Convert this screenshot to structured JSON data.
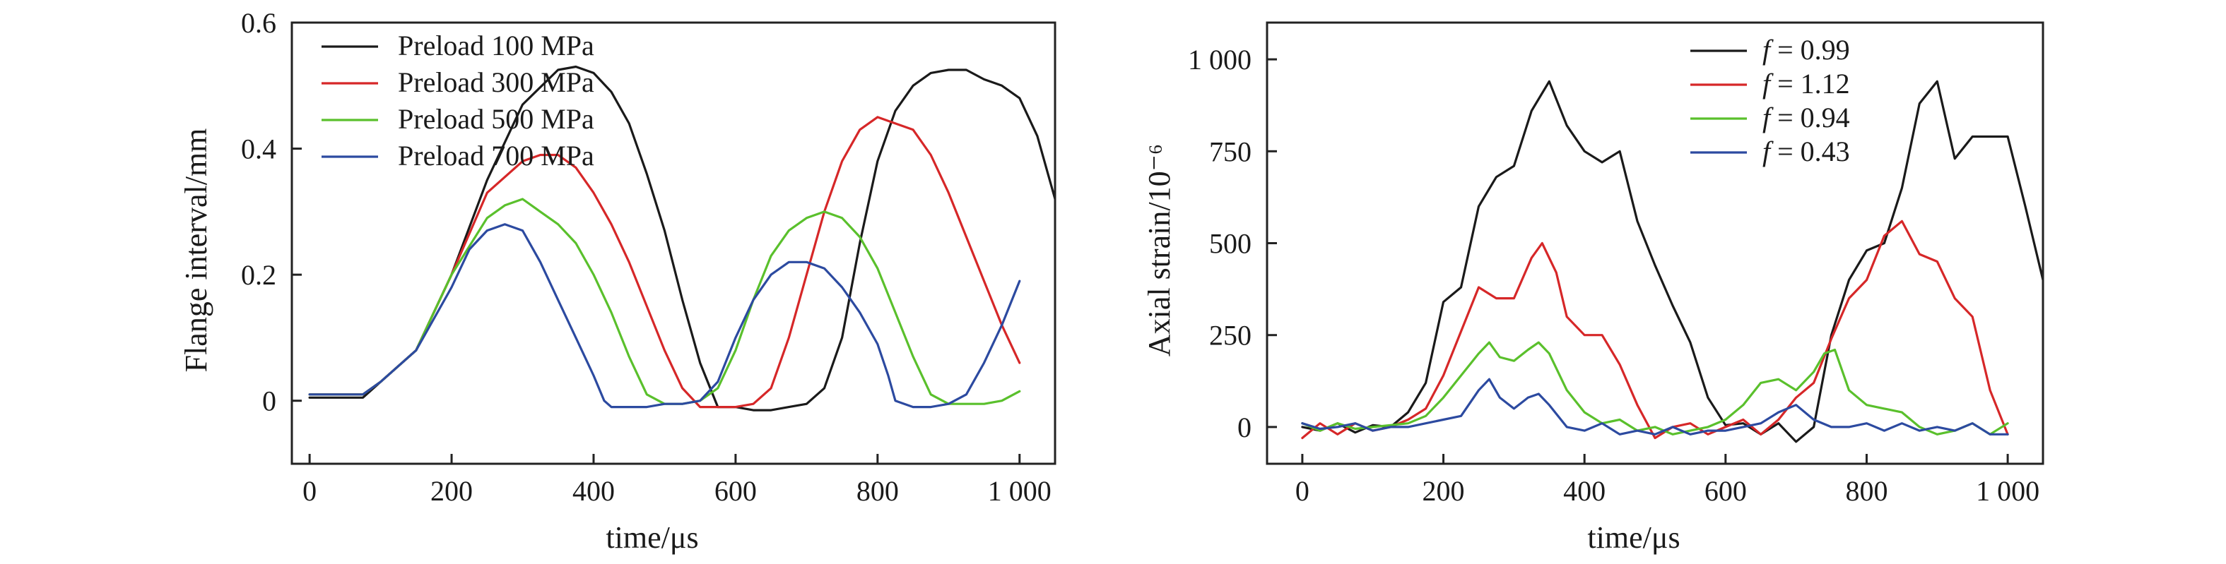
{
  "chart_data": [
    {
      "type": "line",
      "xlabel": "time/μs",
      "ylabel": "Flange interval/mm",
      "xlim": [
        -25,
        1050
      ],
      "ylim": [
        -0.1,
        0.6
      ],
      "xticks": [
        0,
        200,
        400,
        600,
        800,
        1000
      ],
      "xtick_labels": [
        "0",
        "200",
        "400",
        "600",
        "800",
        "1 000"
      ],
      "yticks": [
        0,
        0.2,
        0.4,
        0.6
      ],
      "ytick_labels": [
        "0",
        "0.2",
        "0.4",
        "0.6"
      ],
      "legend_position": "top-left",
      "series": [
        {
          "name": "Preload 100 MPa",
          "color": "#1a1a1a",
          "x": [
            0,
            75,
            100,
            150,
            200,
            250,
            300,
            350,
            375,
            400,
            425,
            450,
            475,
            500,
            525,
            550,
            575,
            600,
            625,
            650,
            675,
            700,
            725,
            750,
            775,
            800,
            825,
            850,
            875,
            900,
            925,
            950,
            975,
            1000,
            1025,
            1050
          ],
          "y": [
            0.005,
            0.005,
            0.03,
            0.08,
            0.2,
            0.35,
            0.47,
            0.525,
            0.53,
            0.52,
            0.49,
            0.44,
            0.36,
            0.27,
            0.16,
            0.06,
            -0.01,
            -0.01,
            -0.015,
            -0.015,
            -0.01,
            -0.005,
            0.02,
            0.1,
            0.25,
            0.38,
            0.46,
            0.5,
            0.52,
            0.525,
            0.525,
            0.51,
            0.5,
            0.48,
            0.42,
            0.32
          ]
        },
        {
          "name": "Preload 300 MPa",
          "color": "#d62728",
          "x": [
            0,
            75,
            100,
            150,
            200,
            250,
            300,
            325,
            350,
            375,
            400,
            425,
            450,
            475,
            500,
            525,
            550,
            575,
            600,
            625,
            650,
            675,
            700,
            725,
            750,
            775,
            800,
            825,
            850,
            875,
            900,
            925,
            950,
            975,
            1000
          ],
          "y": [
            0.01,
            0.01,
            0.03,
            0.08,
            0.2,
            0.33,
            0.38,
            0.39,
            0.39,
            0.37,
            0.33,
            0.28,
            0.22,
            0.15,
            0.08,
            0.02,
            -0.01,
            -0.01,
            -0.01,
            -0.005,
            0.02,
            0.1,
            0.2,
            0.3,
            0.38,
            0.43,
            0.45,
            0.44,
            0.43,
            0.39,
            0.33,
            0.26,
            0.19,
            0.12,
            0.06
          ]
        },
        {
          "name": "Preload 500 MPa",
          "color": "#5ac02c",
          "x": [
            0,
            75,
            100,
            150,
            200,
            250,
            275,
            300,
            325,
            350,
            375,
            400,
            425,
            450,
            475,
            500,
            525,
            550,
            575,
            600,
            625,
            650,
            675,
            700,
            725,
            750,
            775,
            800,
            825,
            850,
            875,
            900,
            925,
            950,
            975,
            1000
          ],
          "y": [
            0.01,
            0.01,
            0.03,
            0.08,
            0.2,
            0.29,
            0.31,
            0.32,
            0.3,
            0.28,
            0.25,
            0.2,
            0.14,
            0.07,
            0.01,
            -0.005,
            -0.005,
            0.0,
            0.02,
            0.08,
            0.16,
            0.23,
            0.27,
            0.29,
            0.3,
            0.29,
            0.26,
            0.21,
            0.14,
            0.07,
            0.01,
            -0.005,
            -0.005,
            -0.005,
            0.0,
            0.015
          ]
        },
        {
          "name": "Preload 700 MPa",
          "color": "#2c4aa0",
          "x": [
            0,
            75,
            100,
            150,
            200,
            225,
            250,
            275,
            300,
            325,
            350,
            375,
            400,
            415,
            425,
            450,
            475,
            500,
            525,
            550,
            575,
            600,
            625,
            650,
            675,
            700,
            725,
            750,
            775,
            800,
            815,
            825,
            850,
            875,
            900,
            925,
            950,
            975,
            1000
          ],
          "y": [
            0.01,
            0.01,
            0.03,
            0.08,
            0.18,
            0.24,
            0.27,
            0.28,
            0.27,
            0.22,
            0.16,
            0.1,
            0.04,
            0.0,
            -0.01,
            -0.01,
            -0.01,
            -0.005,
            -0.005,
            0.0,
            0.03,
            0.1,
            0.16,
            0.2,
            0.22,
            0.22,
            0.21,
            0.18,
            0.14,
            0.09,
            0.04,
            0.0,
            -0.01,
            -0.01,
            -0.005,
            0.01,
            0.06,
            0.12,
            0.19
          ]
        }
      ]
    },
    {
      "type": "line",
      "xlabel": "time/μs",
      "ylabel": "Axial strain/10⁻⁶",
      "xlim": [
        -50,
        1050
      ],
      "ylim": [
        -100,
        1100
      ],
      "xticks": [
        0,
        200,
        400,
        600,
        800,
        1000
      ],
      "xtick_labels": [
        "0",
        "200",
        "400",
        "600",
        "800",
        "1 000"
      ],
      "yticks": [
        0,
        250,
        500,
        750,
        1000
      ],
      "ytick_labels": [
        "0",
        "250",
        "500",
        "750",
        "1 000"
      ],
      "legend_position": "top-right",
      "series": [
        {
          "name": "f = 0.99",
          "legend_italic": "f",
          "legend_rest": " = 0.99",
          "color": "#1a1a1a",
          "x": [
            0,
            25,
            50,
            75,
            100,
            125,
            150,
            175,
            200,
            225,
            250,
            275,
            300,
            325,
            350,
            375,
            400,
            425,
            450,
            475,
            500,
            525,
            550,
            575,
            600,
            625,
            650,
            675,
            700,
            725,
            750,
            775,
            800,
            825,
            850,
            875,
            900,
            925,
            950,
            975,
            1000,
            1025,
            1050
          ],
          "y": [
            0,
            -10,
            10,
            -15,
            5,
            0,
            40,
            120,
            340,
            380,
            600,
            680,
            710,
            860,
            940,
            820,
            750,
            720,
            750,
            560,
            440,
            330,
            230,
            80,
            5,
            10,
            -20,
            10,
            -40,
            0,
            250,
            400,
            480,
            500,
            650,
            880,
            940,
            730,
            790,
            790,
            790,
            600,
            400
          ]
        },
        {
          "name": "f = 1.12",
          "legend_italic": "f",
          "legend_rest": " = 1.12",
          "color": "#d62728",
          "x": [
            0,
            25,
            50,
            75,
            100,
            125,
            150,
            175,
            200,
            225,
            250,
            275,
            300,
            325,
            340,
            360,
            375,
            400,
            425,
            450,
            475,
            500,
            525,
            550,
            575,
            600,
            625,
            650,
            675,
            700,
            725,
            750,
            775,
            800,
            825,
            850,
            875,
            900,
            925,
            950,
            975,
            1000
          ],
          "y": [
            -30,
            10,
            -20,
            10,
            -10,
            0,
            20,
            50,
            140,
            260,
            380,
            350,
            350,
            460,
            500,
            420,
            300,
            250,
            250,
            170,
            60,
            -30,
            0,
            10,
            -20,
            0,
            20,
            -20,
            20,
            80,
            120,
            240,
            350,
            400,
            520,
            560,
            470,
            450,
            350,
            300,
            100,
            -20
          ]
        },
        {
          "name": "f = 0.94",
          "legend_italic": "f",
          "legend_rest": " = 0.94",
          "color": "#5ac02c",
          "x": [
            0,
            25,
            50,
            75,
            100,
            125,
            150,
            175,
            200,
            225,
            250,
            265,
            280,
            300,
            320,
            335,
            350,
            375,
            400,
            425,
            450,
            475,
            500,
            525,
            550,
            575,
            600,
            625,
            650,
            675,
            700,
            725,
            740,
            755,
            775,
            800,
            825,
            850,
            875,
            900,
            925,
            950,
            975,
            1000
          ],
          "y": [
            10,
            -10,
            10,
            -5,
            0,
            5,
            10,
            30,
            80,
            140,
            200,
            230,
            190,
            180,
            210,
            230,
            200,
            100,
            40,
            10,
            20,
            -10,
            0,
            -20,
            -10,
            0,
            20,
            60,
            120,
            130,
            100,
            150,
            200,
            210,
            100,
            60,
            50,
            40,
            0,
            -20,
            -10,
            10,
            -20,
            10
          ]
        },
        {
          "name": "f = 0.43",
          "legend_italic": "f",
          "legend_rest": " = 0.43",
          "color": "#2c4aa0",
          "x": [
            0,
            25,
            50,
            75,
            100,
            125,
            150,
            175,
            200,
            225,
            250,
            265,
            280,
            300,
            320,
            335,
            350,
            375,
            400,
            425,
            450,
            475,
            500,
            525,
            550,
            575,
            600,
            625,
            650,
            675,
            700,
            725,
            750,
            775,
            800,
            825,
            850,
            875,
            900,
            925,
            950,
            975,
            1000
          ],
          "y": [
            10,
            -5,
            0,
            10,
            -10,
            0,
            0,
            10,
            20,
            30,
            100,
            130,
            80,
            50,
            80,
            90,
            60,
            0,
            -10,
            10,
            -20,
            -10,
            -20,
            0,
            -20,
            -10,
            -10,
            0,
            10,
            40,
            60,
            20,
            0,
            0,
            10,
            -10,
            10,
            -10,
            0,
            -10,
            10,
            -20,
            -20
          ]
        }
      ]
    }
  ]
}
